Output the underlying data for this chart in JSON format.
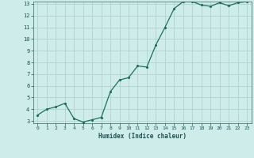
{
  "x": [
    0,
    1,
    2,
    3,
    4,
    5,
    6,
    7,
    8,
    9,
    10,
    11,
    12,
    13,
    14,
    15,
    16,
    17,
    18,
    19,
    20,
    21,
    22,
    23
  ],
  "y": [
    3.5,
    4.0,
    4.2,
    4.5,
    3.2,
    2.9,
    3.1,
    3.3,
    5.5,
    6.5,
    6.7,
    7.7,
    7.6,
    9.5,
    11.0,
    12.6,
    13.2,
    13.2,
    12.9,
    12.8,
    13.1,
    12.85,
    13.1,
    13.2
  ],
  "xlabel": "Humidex (Indice chaleur)",
  "ylim": [
    3,
    13
  ],
  "xlim": [
    -0.5,
    23.5
  ],
  "yticks": [
    3,
    4,
    5,
    6,
    7,
    8,
    9,
    10,
    11,
    12,
    13
  ],
  "xticks": [
    0,
    1,
    2,
    3,
    4,
    5,
    6,
    7,
    8,
    9,
    10,
    11,
    12,
    13,
    14,
    15,
    16,
    17,
    18,
    19,
    20,
    21,
    22,
    23
  ],
  "line_color": "#1a7060",
  "bg_color": "#ceecea",
  "grid_color": "#aacfcc",
  "tick_label_color": "#1a5050",
  "axis_color": "#336655",
  "font_name": "monospace"
}
